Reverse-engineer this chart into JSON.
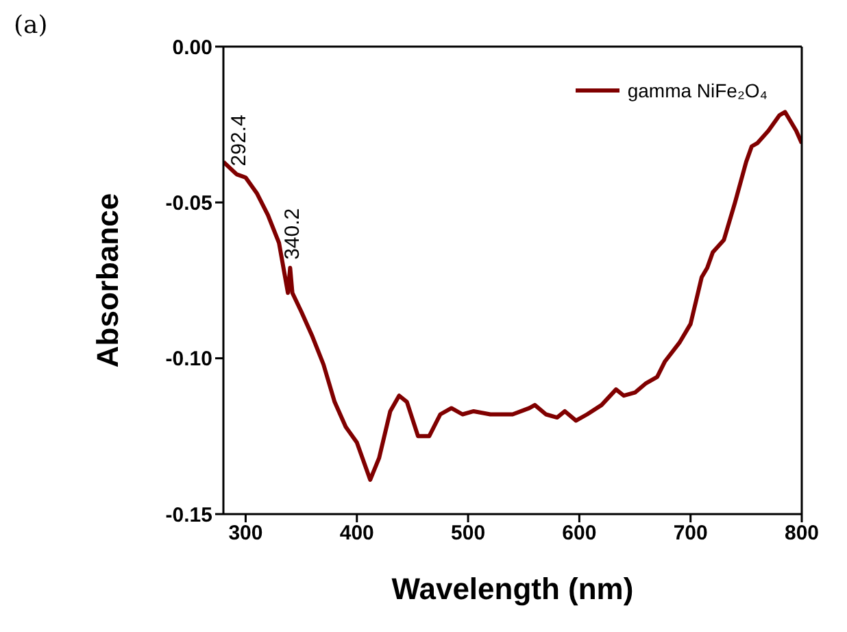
{
  "chart_data": {
    "type": "line",
    "xlabel": "Wavelength (nm)",
    "ylabel": "Absorbance",
    "annotations": [
      "(a)",
      {
        "text": "292.4",
        "x": 292.4,
        "y": -0.041
      },
      {
        "text": "340.2",
        "x": 340.2,
        "y": -0.071
      }
    ],
    "x": [
      280,
      292,
      300,
      310,
      320,
      330,
      338,
      340,
      342,
      350,
      360,
      370,
      380,
      390,
      400,
      412,
      420,
      430,
      438,
      445,
      455,
      465,
      475,
      485,
      495,
      505,
      520,
      540,
      555,
      560,
      570,
      580,
      587,
      597,
      607,
      620,
      633,
      640,
      650,
      660,
      670,
      677,
      690,
      700,
      710,
      715,
      720,
      730,
      740,
      750,
      755,
      760,
      770,
      780,
      785,
      795,
      800
    ],
    "series": [
      {
        "name": "gamma NiFe₂O₄",
        "color": "#800000",
        "values": [
          -0.037,
          -0.041,
          -0.042,
          -0.047,
          -0.054,
          -0.063,
          -0.079,
          -0.071,
          -0.079,
          -0.085,
          -0.093,
          -0.102,
          -0.114,
          -0.122,
          -0.127,
          -0.139,
          -0.132,
          -0.117,
          -0.112,
          -0.114,
          -0.125,
          -0.125,
          -0.118,
          -0.116,
          -0.118,
          -0.117,
          -0.118,
          -0.118,
          -0.116,
          -0.115,
          -0.118,
          -0.119,
          -0.117,
          -0.12,
          -0.118,
          -0.115,
          -0.11,
          -0.112,
          -0.111,
          -0.108,
          -0.106,
          -0.101,
          -0.095,
          -0.089,
          -0.074,
          -0.071,
          -0.066,
          -0.062,
          -0.05,
          -0.037,
          -0.032,
          -0.031,
          -0.027,
          -0.022,
          -0.021,
          -0.027,
          -0.031
        ]
      }
    ],
    "xlim": [
      280,
      800
    ],
    "xticks": [
      300,
      400,
      500,
      600,
      700,
      800
    ],
    "ylim": [
      -0.15,
      0
    ],
    "yticks": [
      {
        "value": 0,
        "label": "0.00"
      },
      {
        "value": -0.05,
        "label": "-0.05"
      },
      {
        "value": -0.1,
        "label": "-0.10"
      },
      {
        "value": -0.15,
        "label": "-0.15"
      }
    ],
    "grid": false,
    "legend": "top right",
    "marker": "none",
    "line_style": "solid"
  }
}
